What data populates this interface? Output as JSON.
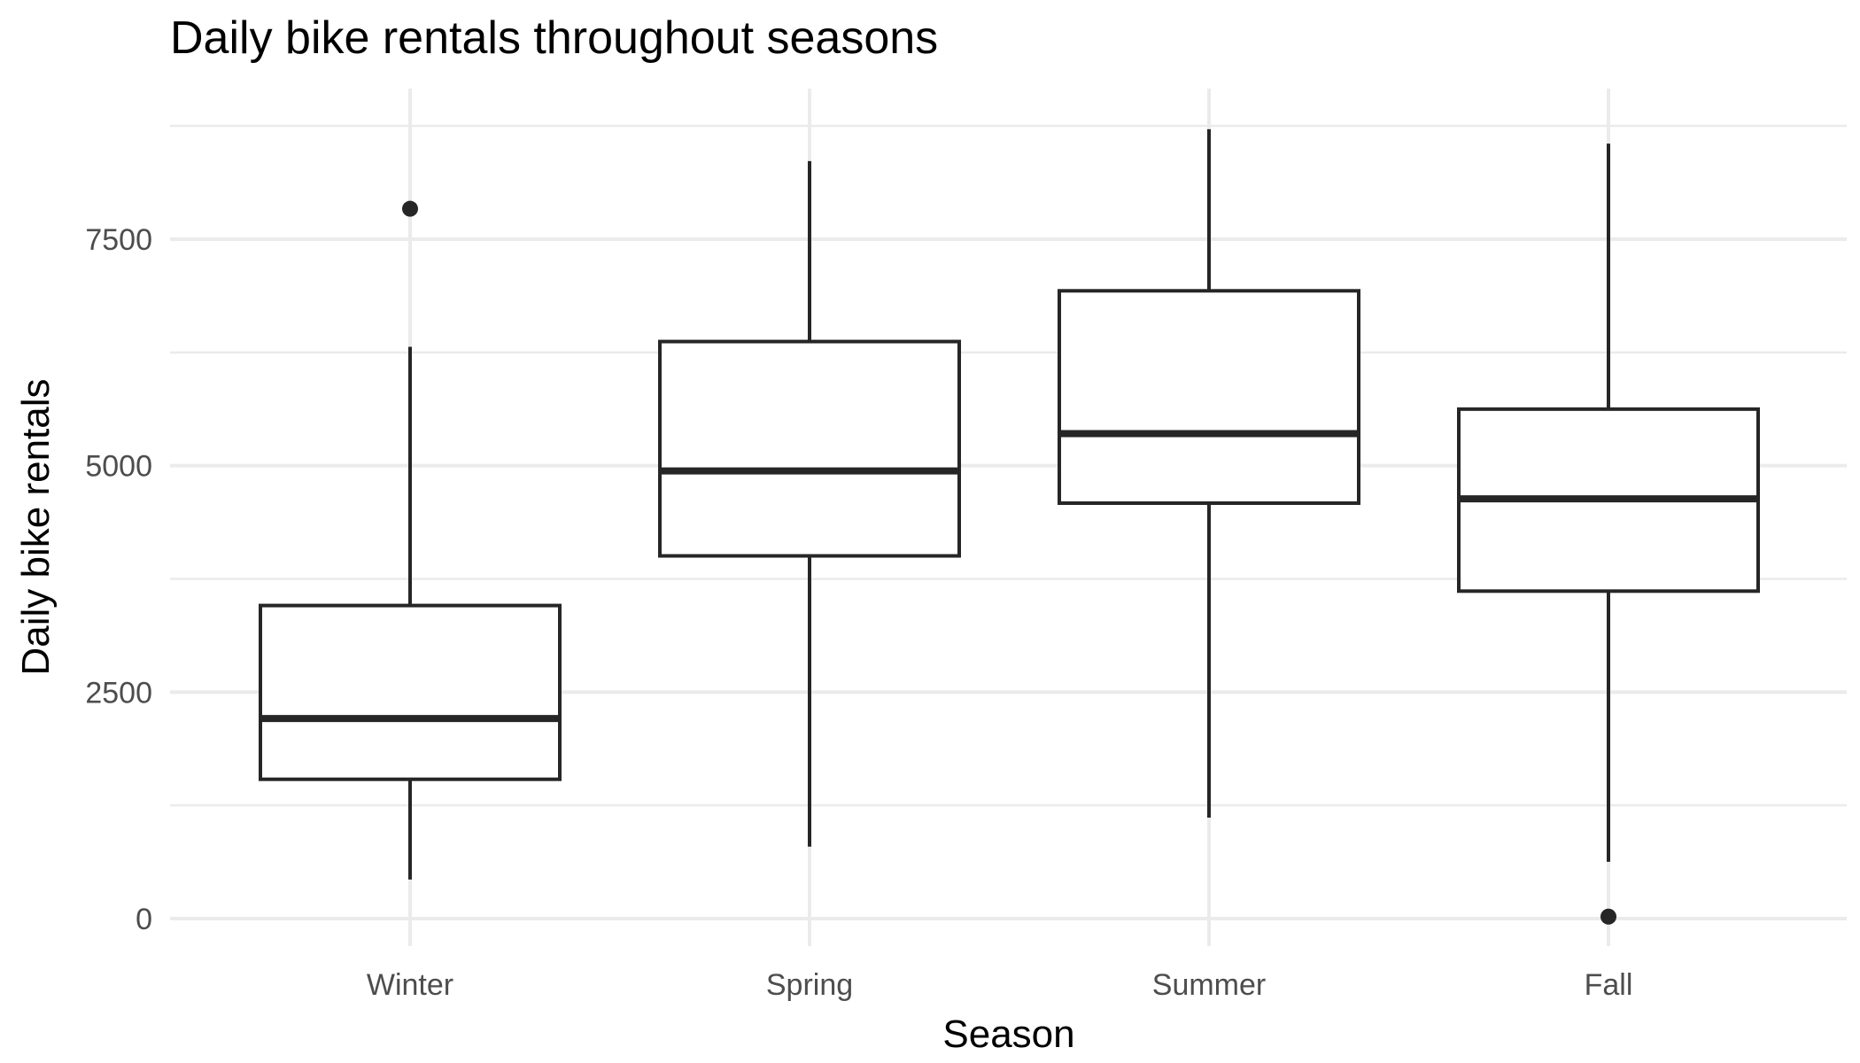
{
  "chart_data": {
    "type": "box",
    "title": "Daily bike rentals throughout seasons",
    "xlabel": "Season",
    "ylabel": "Daily bike rentals",
    "ylim": [
      -400,
      9000
    ],
    "y_ticks": [
      0,
      2500,
      5000,
      7500
    ],
    "y_tick_labels": [
      "0",
      "2500",
      "5000",
      "7500"
    ],
    "categories": [
      "Winter",
      "Spring",
      "Summer",
      "Fall"
    ],
    "boxes": [
      {
        "category": "Winter",
        "whisker_low": 431,
        "q1": 1538,
        "median": 2209,
        "q3": 3456,
        "whisker_high": 6312,
        "outliers": [
          7836
        ]
      },
      {
        "category": "Spring",
        "whisker_low": 795,
        "q1": 4004,
        "median": 4942,
        "q3": 6370,
        "whisker_high": 8362,
        "outliers": []
      },
      {
        "category": "Summer",
        "whisker_low": 1115,
        "q1": 4586,
        "median": 5354,
        "q3": 6930,
        "whisker_high": 8714,
        "outliers": []
      },
      {
        "category": "Fall",
        "whisker_low": 627,
        "q1": 3615,
        "median": 4634,
        "q3": 5624,
        "whisker_high": 8555,
        "outliers": [
          22
        ]
      }
    ],
    "grid": true,
    "legend": "none",
    "colors": {
      "box_stroke": "#262626",
      "box_fill": "#ffffff",
      "grid": "#ebebeb"
    }
  }
}
